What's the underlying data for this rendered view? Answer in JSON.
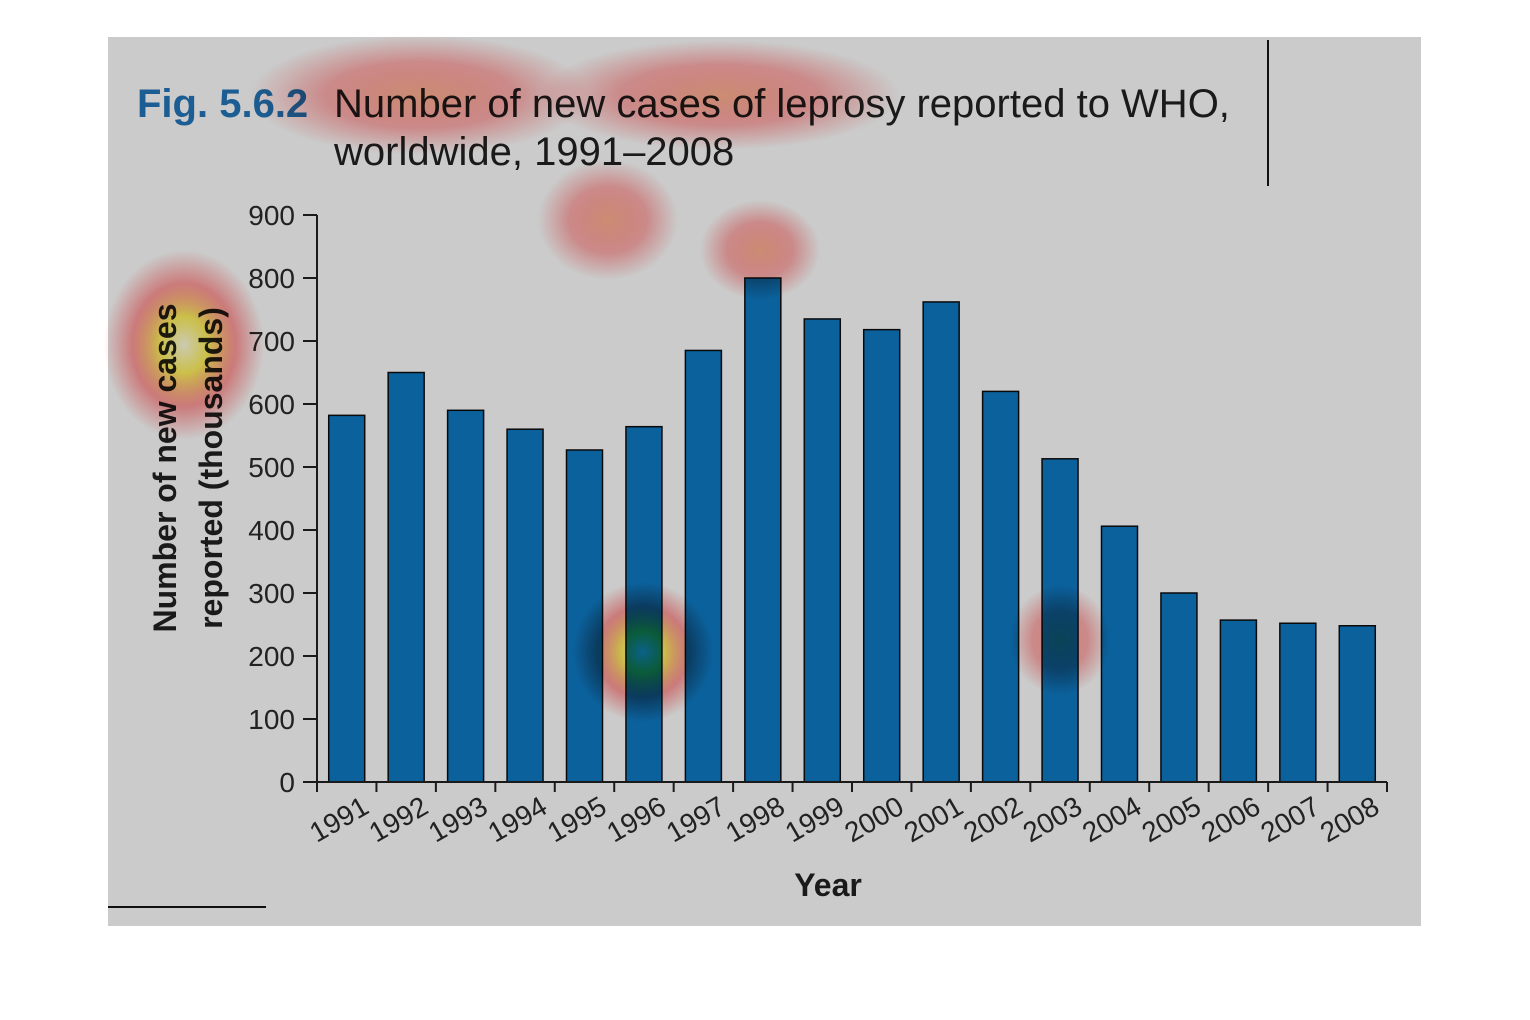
{
  "figure": {
    "number": "Fig. 5.6.2",
    "title_line1": "Number of new cases of leprosy reported to WHO,",
    "title_line2": "worldwide, 1991–2008"
  },
  "colors": {
    "bar": "#0b619c",
    "panel": "#cbcbcb",
    "fig_number": "#1c5e93",
    "heat_hot": "#ffff80",
    "heat_warm": "#ff5050"
  },
  "chart_data": {
    "type": "bar",
    "categories": [
      "1991",
      "1992",
      "1993",
      "1994",
      "1995",
      "1996",
      "1997",
      "1998",
      "1999",
      "2000",
      "2001",
      "2002",
      "2003",
      "2004",
      "2005",
      "2006",
      "2007",
      "2008"
    ],
    "values": [
      582,
      650,
      590,
      560,
      527,
      564,
      685,
      800,
      735,
      718,
      762,
      620,
      513,
      406,
      300,
      257,
      252,
      248
    ],
    "xlabel": "Year",
    "ylabel_line1": "Number of new cases",
    "ylabel_line2": "reported (thousands)",
    "ylim": [
      0,
      900
    ],
    "yticks": [
      "0",
      "100",
      "200",
      "300",
      "400",
      "500",
      "600",
      "700",
      "800",
      "900"
    ],
    "grid": false
  }
}
